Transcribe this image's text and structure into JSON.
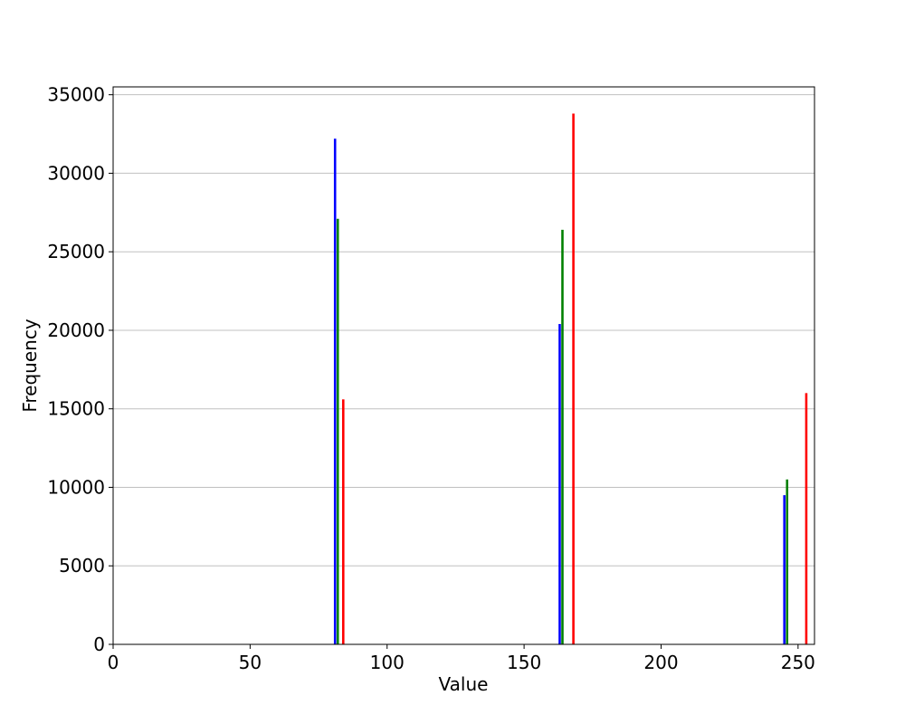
{
  "chart_data": {
    "type": "bar",
    "title": "",
    "xlabel": "Value",
    "ylabel": "Frequency",
    "xlim": [
      0,
      256
    ],
    "ylim": [
      0,
      35500
    ],
    "xticks": [
      0,
      50,
      100,
      150,
      200,
      250
    ],
    "yticks": [
      0,
      5000,
      10000,
      15000,
      20000,
      25000,
      30000,
      35000
    ],
    "grid": "y",
    "bar_width": 1,
    "series": [
      {
        "color": "#0000ff",
        "x": [
          81,
          163,
          245
        ],
        "values": [
          32200,
          20400,
          9500
        ]
      },
      {
        "color": "#008000",
        "x": [
          82,
          164,
          246
        ],
        "values": [
          27100,
          26400,
          10500
        ]
      },
      {
        "color": "#ff0000",
        "x": [
          84,
          168,
          253
        ],
        "values": [
          15600,
          33800,
          16000
        ]
      }
    ]
  }
}
